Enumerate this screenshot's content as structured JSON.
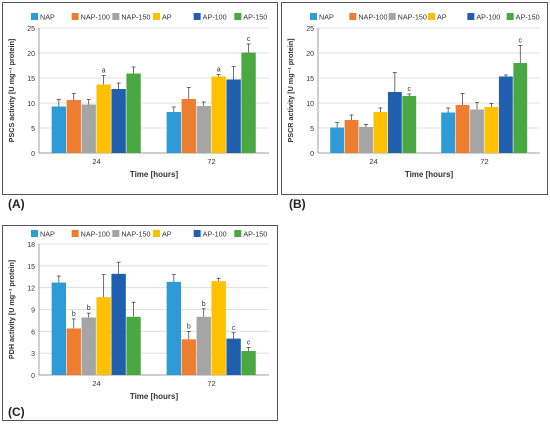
{
  "legend_colors": [
    "#2e9bd6",
    "#ed7d31",
    "#a5a5a5",
    "#ffc000",
    "#1f5fae",
    "#4aa843"
  ],
  "chart_data": [
    {
      "panel": "(A)",
      "type": "bar",
      "categories": [
        "24",
        "72"
      ],
      "xlabel": "Time [hours]",
      "ylabel": "PSCS activity [U mg⁻¹ protein]",
      "ylim": [
        0,
        25
      ],
      "yticks": [
        0,
        5,
        10,
        15,
        20,
        25
      ],
      "grid": true,
      "legend_position": "top",
      "series": [
        {
          "name": "NAP",
          "values": [
            9.3,
            8.2
          ],
          "errors": [
            1.4,
            1.0
          ],
          "labels": [
            "",
            ""
          ]
        },
        {
          "name": "NAP-100",
          "values": [
            10.6,
            10.8
          ],
          "errors": [
            1.3,
            2.3
          ],
          "labels": [
            "",
            ""
          ]
        },
        {
          "name": "NAP-150",
          "values": [
            9.7,
            9.4
          ],
          "errors": [
            1.0,
            0.8
          ],
          "labels": [
            "",
            ""
          ]
        },
        {
          "name": "AP",
          "values": [
            13.7,
            15.3
          ],
          "errors": [
            1.8,
            0.4
          ],
          "labels": [
            "a",
            "a"
          ]
        },
        {
          "name": "AP-100",
          "values": [
            12.8,
            14.7
          ],
          "errors": [
            1.2,
            2.6
          ],
          "labels": [
            "",
            ""
          ]
        },
        {
          "name": "AP-150",
          "values": [
            15.9,
            20.1
          ],
          "errors": [
            1.3,
            1.7
          ],
          "labels": [
            "",
            "c"
          ]
        }
      ]
    },
    {
      "panel": "(B)",
      "type": "bar",
      "categories": [
        "24",
        "72"
      ],
      "xlabel": "Time [hours]",
      "ylabel": "PSCR activity [U mg⁻¹ protein]",
      "ylim": [
        0,
        25
      ],
      "yticks": [
        0,
        5,
        10,
        15,
        20,
        25
      ],
      "grid": true,
      "legend_position": "top",
      "series": [
        {
          "name": "NAP",
          "values": [
            5.1,
            8.1
          ],
          "errors": [
            1.0,
            0.9
          ],
          "labels": [
            "",
            ""
          ]
        },
        {
          "name": "NAP-100",
          "values": [
            6.6,
            9.6
          ],
          "errors": [
            1.0,
            2.3
          ],
          "labels": [
            "",
            ""
          ]
        },
        {
          "name": "NAP-150",
          "values": [
            5.2,
            8.7
          ],
          "errors": [
            0.5,
            1.4
          ],
          "labels": [
            "",
            ""
          ]
        },
        {
          "name": "AP",
          "values": [
            8.2,
            9.2
          ],
          "errors": [
            0.8,
            0.7
          ],
          "labels": [
            "",
            ""
          ]
        },
        {
          "name": "AP-100",
          "values": [
            12.2,
            15.3
          ],
          "errors": [
            3.9,
            0.3
          ],
          "labels": [
            "",
            ""
          ]
        },
        {
          "name": "AP-150",
          "values": [
            11.4,
            18.0
          ],
          "errors": [
            0.4,
            3.5
          ],
          "labels": [
            "c",
            "c"
          ]
        }
      ]
    },
    {
      "panel": "(C)",
      "type": "bar",
      "categories": [
        "24",
        "72"
      ],
      "xlabel": "Time [hours]",
      "ylabel": "PDH activity [U mg⁻¹ protein]",
      "ylim": [
        0,
        18
      ],
      "yticks": [
        0,
        3,
        6,
        9,
        12,
        15,
        18
      ],
      "grid": true,
      "legend_position": "top",
      "series": [
        {
          "name": "NAP",
          "values": [
            12.7,
            12.8
          ],
          "errors": [
            0.9,
            1.0
          ],
          "labels": [
            "",
            ""
          ]
        },
        {
          "name": "NAP-100",
          "values": [
            6.4,
            4.9
          ],
          "errors": [
            1.3,
            1.1
          ],
          "labels": [
            "b",
            "b"
          ]
        },
        {
          "name": "NAP-150",
          "values": [
            7.9,
            8.0
          ],
          "errors": [
            0.6,
            1.1
          ],
          "labels": [
            "b",
            "b"
          ]
        },
        {
          "name": "AP",
          "values": [
            10.7,
            12.9
          ],
          "errors": [
            3.1,
            0.4
          ],
          "labels": [
            "",
            ""
          ]
        },
        {
          "name": "AP-100",
          "values": [
            13.9,
            5.0
          ],
          "errors": [
            1.6,
            0.8
          ],
          "labels": [
            "",
            "c"
          ]
        },
        {
          "name": "AP-150",
          "values": [
            8.0,
            3.3
          ],
          "errors": [
            2.0,
            0.5
          ],
          "labels": [
            "",
            "c"
          ]
        }
      ]
    }
  ]
}
